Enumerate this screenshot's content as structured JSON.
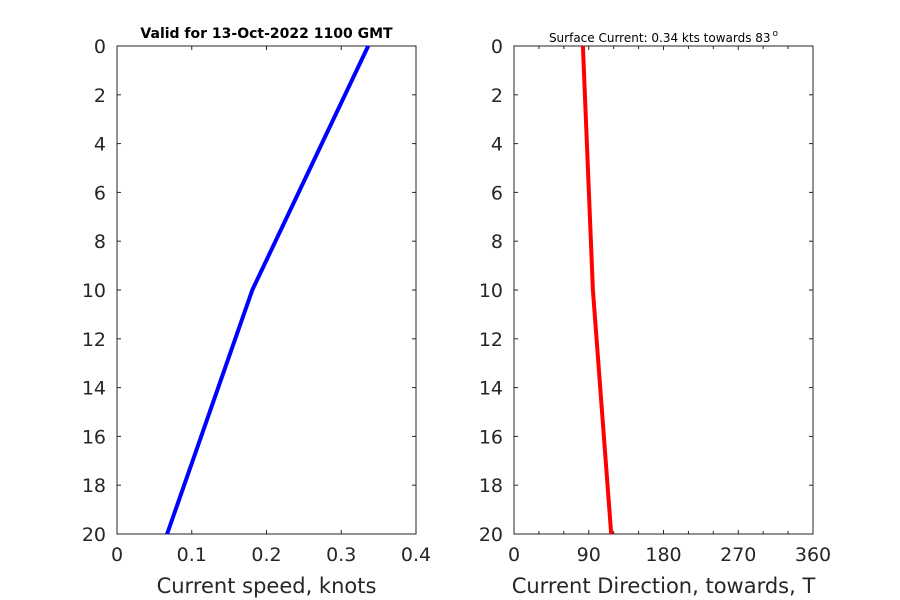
{
  "chart_data": [
    {
      "type": "line",
      "title": "Valid for 13-Oct-2022 1100 GMT",
      "xlabel": "Current speed, knots",
      "ylabel": "",
      "xlim": [
        0,
        0.4
      ],
      "ylim": [
        0,
        20
      ],
      "y_reversed": true,
      "xticks": [
        0,
        0.1,
        0.2,
        0.3,
        0.4
      ],
      "xtick_labels": [
        "0",
        "0.1",
        "0.2",
        "0.3",
        "0.4"
      ],
      "yticks": [
        0,
        2,
        4,
        6,
        8,
        10,
        12,
        14,
        16,
        18,
        20
      ],
      "grid": false,
      "series": [
        {
          "color": "#0000ff",
          "x": [
            0.336,
            0.181,
            0.067
          ],
          "y": [
            0,
            10,
            20
          ]
        }
      ]
    },
    {
      "type": "line",
      "title": "Surface Current: 0.34 kts towards 83",
      "title_superscript": "o",
      "xlabel": "Current Direction, towards, T",
      "ylabel": "",
      "xlim": [
        0,
        360
      ],
      "ylim": [
        0,
        20
      ],
      "y_reversed": true,
      "xticks": [
        0,
        90,
        180,
        270,
        360
      ],
      "xtick_labels": [
        "0",
        "90",
        "180",
        "270",
        "360"
      ],
      "x_minor_ticks": [
        30,
        60,
        120,
        150,
        210,
        240,
        300,
        330
      ],
      "yticks": [
        0,
        2,
        4,
        6,
        8,
        10,
        12,
        14,
        16,
        18,
        20
      ],
      "grid": false,
      "series": [
        {
          "color": "#ff0000",
          "x": [
            83,
            95,
            117
          ],
          "y": [
            0,
            10,
            20
          ]
        }
      ]
    }
  ]
}
